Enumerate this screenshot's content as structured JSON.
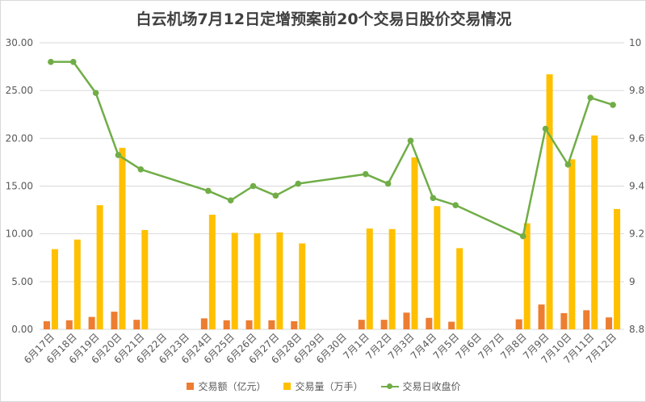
{
  "chart_data": {
    "type": "bar",
    "title": "白云机场7月12日定增预案前20个交易日股价交易情况",
    "categories": [
      "6月17日",
      "6月18日",
      "6月19日",
      "6月20日",
      "6月21日",
      "6月22日",
      "6月23日",
      "6月24日",
      "6月25日",
      "6月26日",
      "6月27日",
      "6月28日",
      "6月29日",
      "6月30日",
      "7月1日",
      "7月2日",
      "7月3日",
      "7月4日",
      "7月5日",
      "7月6日",
      "7月7日",
      "7月8日",
      "7月9日",
      "7月10日",
      "7月11日",
      "7月12日"
    ],
    "series": [
      {
        "name": "交易额（亿元）",
        "axis": "left",
        "type": "bar",
        "color": "#ED7D31",
        "values": [
          0.85,
          0.95,
          1.3,
          1.85,
          1.0,
          null,
          null,
          1.15,
          0.95,
          0.95,
          0.95,
          0.85,
          null,
          null,
          1.0,
          1.0,
          1.75,
          1.2,
          0.8,
          null,
          null,
          1.05,
          2.6,
          1.7,
          2.0,
          1.25
        ]
      },
      {
        "name": "交易量（万手）",
        "axis": "left",
        "type": "bar",
        "color": "#FFC000",
        "values": [
          8.4,
          9.4,
          13.0,
          19.0,
          10.4,
          null,
          null,
          12.0,
          10.1,
          10.05,
          10.15,
          9.0,
          null,
          null,
          10.55,
          10.5,
          18.0,
          12.9,
          8.5,
          null,
          null,
          11.1,
          26.7,
          17.8,
          20.3,
          12.6
        ]
      },
      {
        "name": "交易日收盘价",
        "axis": "right",
        "type": "line",
        "color": "#70AD47",
        "values": [
          9.92,
          9.92,
          9.79,
          9.53,
          9.47,
          null,
          null,
          9.38,
          9.34,
          9.4,
          9.36,
          9.41,
          null,
          null,
          9.45,
          9.41,
          9.59,
          9.35,
          9.32,
          null,
          null,
          9.19,
          9.64,
          9.49,
          9.77,
          9.74
        ]
      }
    ],
    "y_left": {
      "min": 0,
      "max": 30,
      "ticks": [
        "0.00",
        "5.00",
        "10.00",
        "15.00",
        "20.00",
        "25.00",
        "30.00"
      ]
    },
    "y_right": {
      "min": 8.8,
      "max": 10,
      "ticks": [
        "8.8",
        "9",
        "9.2",
        "9.4",
        "9.6",
        "9.8",
        "10"
      ]
    },
    "grid": true,
    "legend_position": "bottom"
  }
}
